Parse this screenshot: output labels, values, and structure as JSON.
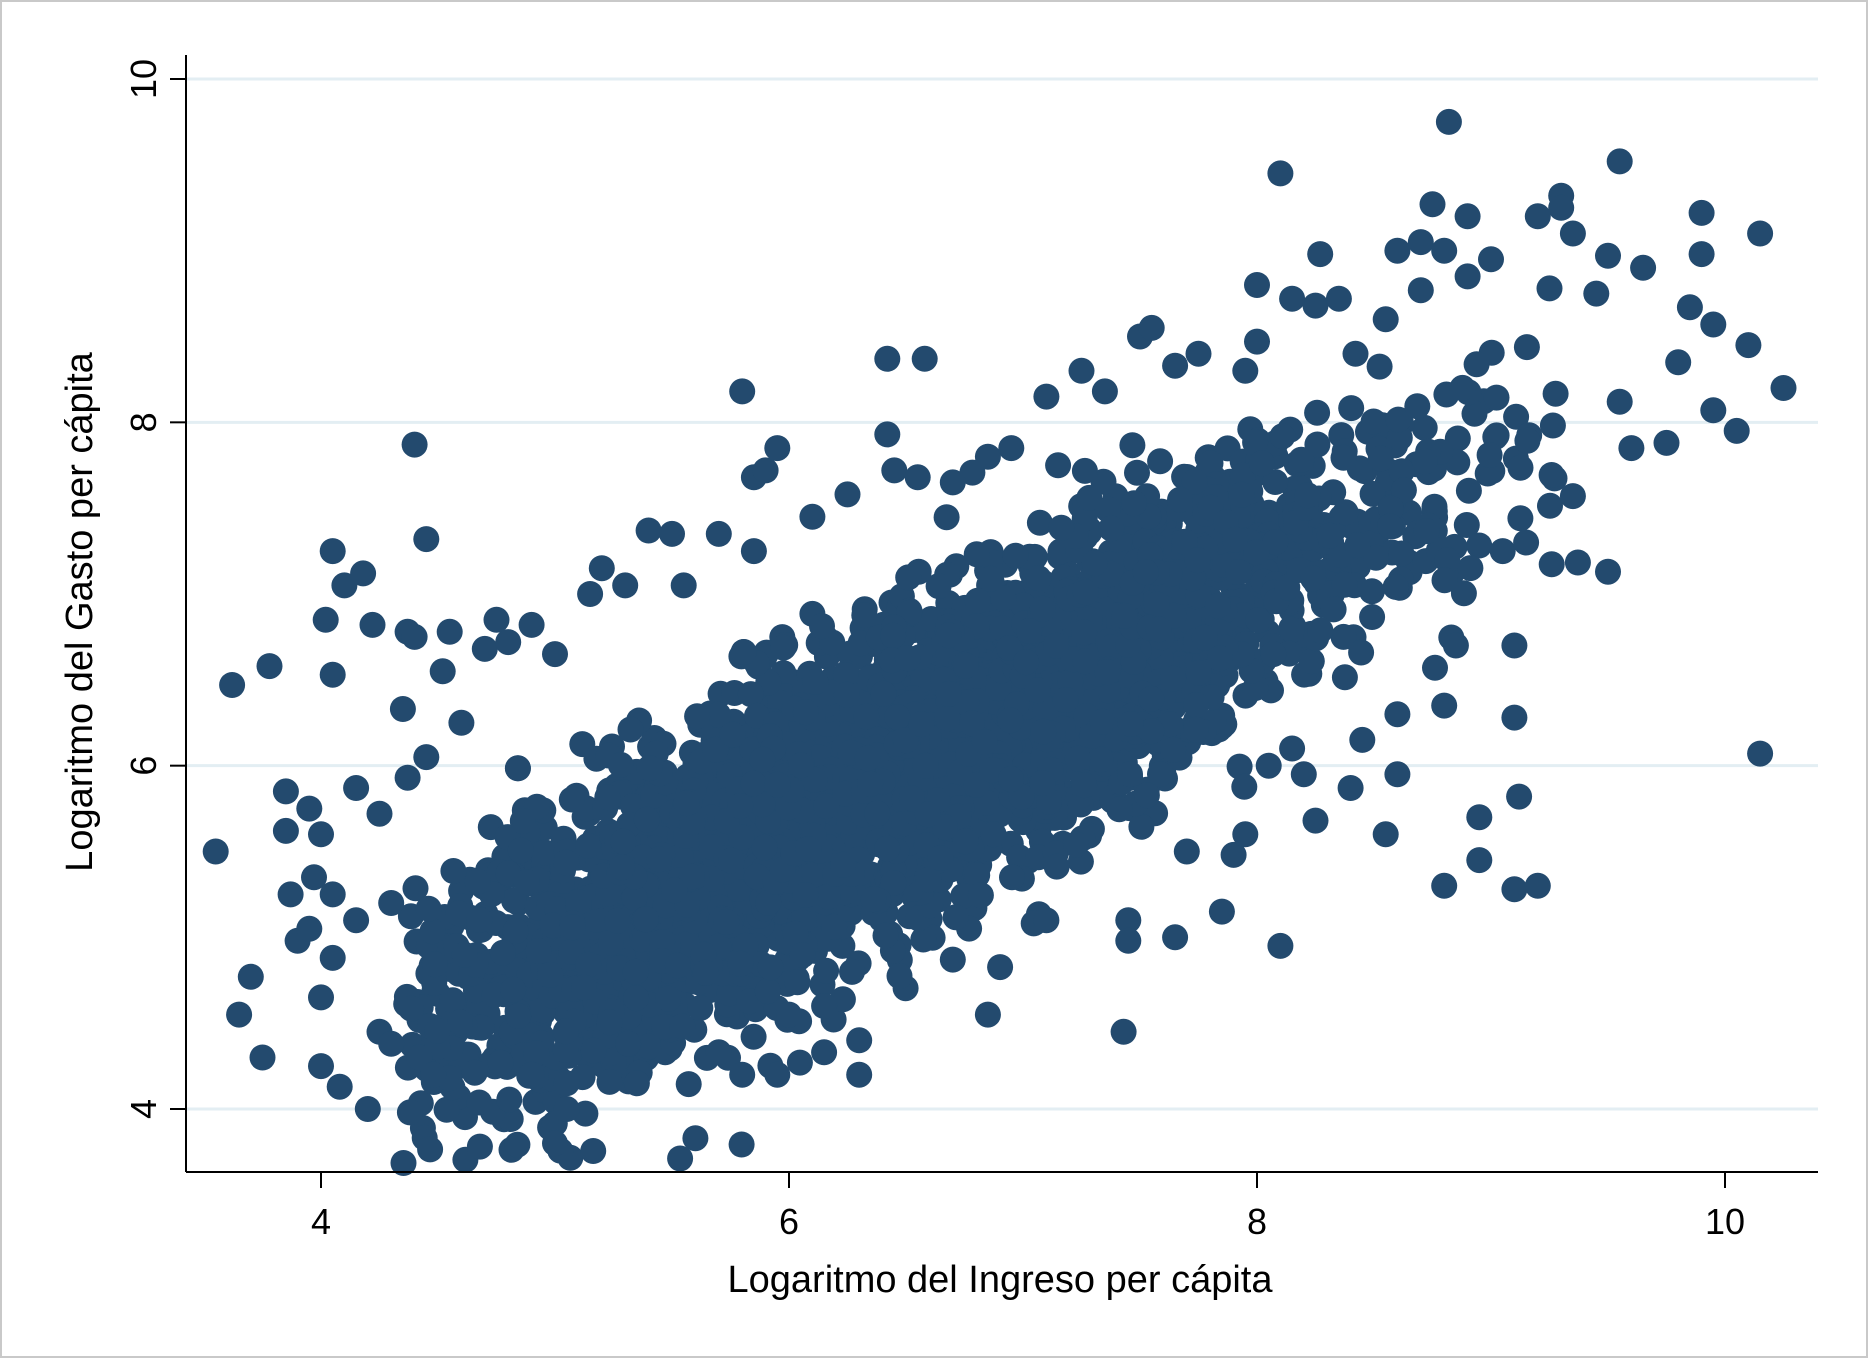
{
  "chart_data": {
    "type": "scatter",
    "title": "",
    "xlabel": "Logaritmo del Ingreso per cápita",
    "ylabel": "Logaritmo del Gasto per cápita",
    "xlim": [
      3.45,
      10.45
    ],
    "ylim": [
      3.65,
      10.2
    ],
    "x_ticks": [
      4,
      6,
      8,
      10
    ],
    "y_ticks": [
      4,
      6,
      8,
      10
    ],
    "x_tick_labels": [
      "4",
      "6",
      "8",
      "10"
    ],
    "y_tick_labels": [
      "4",
      "6",
      "8",
      "10"
    ],
    "grid": "horizontal",
    "marker_color": "#234a6e",
    "grid_color": "#e3eef3",
    "points_approx_trend": {
      "slope": 0.73,
      "intercept": 1.25,
      "note_residual_sd": 0.42
    },
    "series": [
      {
        "points": [
          [
            3.55,
            5.5
          ],
          [
            3.62,
            6.47
          ],
          [
            3.65,
            4.55
          ],
          [
            3.7,
            4.77
          ],
          [
            3.75,
            4.3
          ],
          [
            3.78,
            6.58
          ],
          [
            3.85,
            5.85
          ],
          [
            3.85,
            5.62
          ],
          [
            3.87,
            5.25
          ],
          [
            3.9,
            4.98
          ],
          [
            3.95,
            5.75
          ],
          [
            3.95,
            5.05
          ],
          [
            3.97,
            5.35
          ],
          [
            4.0,
            5.6
          ],
          [
            4.0,
            4.65
          ],
          [
            4.0,
            4.25
          ],
          [
            4.02,
            6.85
          ],
          [
            4.05,
            7.25
          ],
          [
            4.05,
            6.53
          ],
          [
            4.05,
            5.25
          ],
          [
            4.05,
            4.88
          ],
          [
            4.08,
            4.13
          ],
          [
            4.1,
            7.05
          ],
          [
            4.15,
            5.87
          ],
          [
            4.15,
            5.1
          ],
          [
            4.18,
            7.12
          ],
          [
            4.2,
            4.0
          ],
          [
            4.22,
            6.82
          ],
          [
            4.25,
            5.72
          ],
          [
            4.25,
            4.45
          ],
          [
            4.3,
            5.2
          ],
          [
            4.3,
            4.38
          ],
          [
            4.35,
            6.33
          ],
          [
            4.37,
            6.78
          ],
          [
            4.37,
            5.93
          ],
          [
            4.38,
            3.98
          ],
          [
            4.4,
            7.87
          ],
          [
            4.4,
            6.75
          ],
          [
            4.42,
            4.3
          ],
          [
            4.45,
            7.32
          ],
          [
            4.45,
            6.05
          ],
          [
            4.48,
            4.2
          ],
          [
            4.52,
            6.55
          ],
          [
            4.55,
            6.78
          ],
          [
            4.6,
            6.25
          ],
          [
            4.7,
            6.68
          ],
          [
            4.75,
            6.85
          ],
          [
            4.8,
            6.72
          ],
          [
            4.9,
            6.82
          ],
          [
            5.0,
            6.65
          ],
          [
            4.9,
            4.2
          ],
          [
            5.0,
            3.8
          ],
          [
            5.05,
            4.0
          ],
          [
            5.05,
            4.15
          ],
          [
            5.15,
            7.0
          ],
          [
            5.2,
            7.15
          ],
          [
            5.3,
            7.05
          ],
          [
            5.35,
            4.15
          ],
          [
            5.4,
            7.37
          ],
          [
            5.5,
            7.35
          ],
          [
            5.55,
            7.05
          ],
          [
            5.6,
            3.83
          ],
          [
            5.7,
            7.35
          ],
          [
            5.7,
            4.33
          ],
          [
            5.8,
            8.18
          ],
          [
            5.8,
            4.2
          ],
          [
            5.85,
            7.25
          ],
          [
            5.85,
            7.68
          ],
          [
            5.9,
            7.72
          ],
          [
            5.95,
            7.85
          ],
          [
            5.95,
            4.2
          ],
          [
            6.0,
            4.55
          ],
          [
            6.1,
            7.45
          ],
          [
            6.15,
            4.6
          ],
          [
            6.15,
            4.33
          ],
          [
            6.25,
            7.58
          ],
          [
            6.3,
            4.4
          ],
          [
            6.3,
            4.2
          ],
          [
            6.42,
            8.37
          ],
          [
            6.42,
            7.93
          ],
          [
            6.45,
            7.72
          ],
          [
            6.55,
            7.68
          ],
          [
            6.58,
            8.37
          ],
          [
            6.7,
            7.65
          ],
          [
            6.7,
            4.87
          ],
          [
            6.85,
            4.55
          ],
          [
            6.85,
            7.8
          ],
          [
            6.95,
            7.85
          ],
          [
            7.1,
            8.15
          ],
          [
            7.1,
            5.1
          ],
          [
            7.15,
            7.75
          ],
          [
            7.25,
            8.3
          ],
          [
            7.35,
            8.18
          ],
          [
            7.43,
            4.45
          ],
          [
            7.45,
            5.1
          ],
          [
            7.45,
            4.98
          ],
          [
            7.5,
            8.5
          ],
          [
            7.55,
            8.55
          ],
          [
            7.65,
            8.33
          ],
          [
            7.65,
            5.0
          ],
          [
            7.7,
            5.5
          ],
          [
            7.75,
            8.4
          ],
          [
            7.85,
            5.15
          ],
          [
            7.9,
            5.48
          ],
          [
            7.95,
            5.6
          ],
          [
            8.0,
            8.47
          ],
          [
            8.0,
            8.8
          ],
          [
            8.05,
            6.0
          ],
          [
            8.1,
            9.45
          ],
          [
            8.1,
            4.95
          ],
          [
            8.15,
            6.1
          ],
          [
            8.2,
            5.95
          ],
          [
            8.25,
            8.68
          ],
          [
            8.25,
            5.68
          ],
          [
            8.27,
            8.98
          ],
          [
            8.35,
            8.72
          ],
          [
            8.4,
            5.87
          ],
          [
            8.45,
            6.15
          ],
          [
            8.55,
            8.6
          ],
          [
            8.55,
            5.6
          ],
          [
            8.6,
            6.3
          ],
          [
            8.6,
            5.95
          ],
          [
            8.7,
            8.77
          ],
          [
            8.75,
            9.27
          ],
          [
            8.8,
            9.0
          ],
          [
            8.8,
            6.35
          ],
          [
            8.8,
            5.3
          ],
          [
            8.82,
            9.75
          ],
          [
            8.85,
            6.7
          ],
          [
            8.9,
            8.85
          ],
          [
            8.95,
            5.7
          ],
          [
            8.95,
            5.45
          ],
          [
            9.05,
            7.25
          ],
          [
            9.1,
            6.7
          ],
          [
            9.1,
            6.28
          ],
          [
            9.1,
            5.28
          ],
          [
            9.12,
            5.82
          ],
          [
            9.15,
            7.3
          ],
          [
            9.2,
            9.2
          ],
          [
            9.2,
            5.3
          ],
          [
            9.25,
            8.78
          ],
          [
            9.3,
            9.32
          ],
          [
            9.35,
            9.1
          ],
          [
            9.35,
            7.57
          ],
          [
            9.45,
            8.75
          ],
          [
            9.5,
            8.97
          ],
          [
            9.5,
            7.13
          ],
          [
            9.55,
            9.52
          ],
          [
            9.55,
            8.12
          ],
          [
            9.6,
            7.85
          ],
          [
            9.65,
            8.9
          ],
          [
            9.75,
            7.88
          ],
          [
            9.8,
            8.35
          ],
          [
            9.85,
            8.67
          ],
          [
            9.9,
            9.22
          ],
          [
            9.9,
            8.98
          ],
          [
            9.95,
            8.57
          ],
          [
            9.95,
            8.07
          ],
          [
            10.05,
            7.95
          ],
          [
            10.1,
            8.45
          ],
          [
            10.15,
            6.07
          ],
          [
            10.15,
            9.1
          ],
          [
            10.25,
            8.2
          ],
          [
            8.15,
            8.72
          ],
          [
            8.6,
            9.0
          ],
          [
            8.7,
            9.05
          ],
          [
            8.9,
            9.2
          ],
          [
            9.0,
            8.95
          ],
          [
            9.3,
            9.25
          ],
          [
            7.95,
            8.3
          ]
        ]
      }
    ]
  }
}
